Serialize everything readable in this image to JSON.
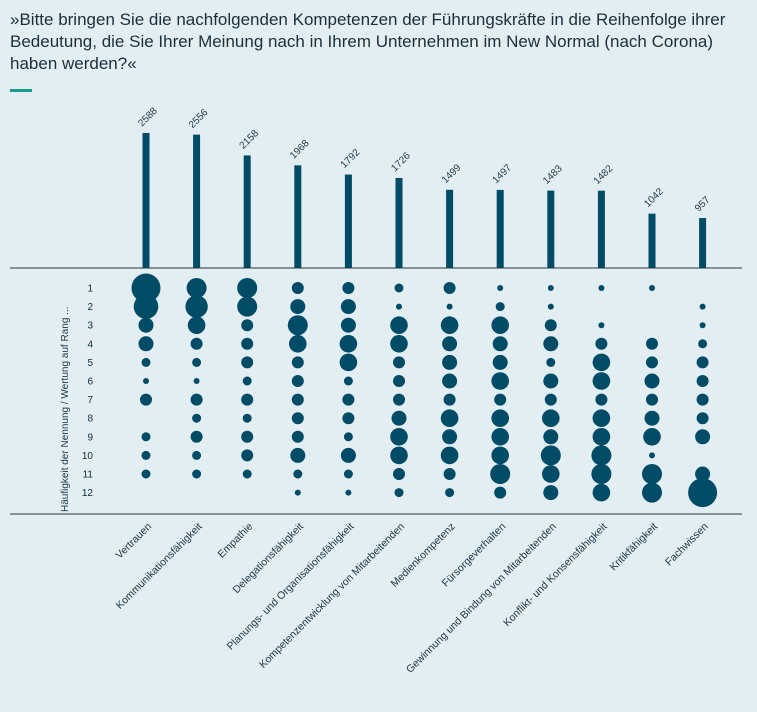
{
  "title": "»Bitte bringen Sie die nachfolgenden Kompetenzen der Führungskräfte in die Reihenfolge ihrer Bedeutung, die Sie Ihrer Meinung nach in Ihrem Unternehmen im New Normal (nach Corona) haben werden?«",
  "colors": {
    "accent": "#1a9b8e",
    "marks": "#004b66",
    "background": "#e3eef2"
  },
  "chart_data": {
    "type": "bar",
    "ylabel": "Häufigkeit der Nennung / Wertung auf Rang ...",
    "categories": [
      "Vertrauen",
      "Kommunikationsfähigkeit",
      "Empathie",
      "Delegationsfähigkeit",
      "Planungs- und Organisationsfähigkeit",
      "Kompetenzentwicklung von Mitarbeitenden",
      "Medienkompetenz",
      "Fürsorgeverhalten",
      "Gewinnung und Bindung von Mitarbeitenden",
      "Konflikt- und Konsensfähigkeit",
      "Kritikfähigkeit",
      "Fachwissen"
    ],
    "values": [
      2588,
      2556,
      2158,
      1968,
      1792,
      1726,
      1499,
      1497,
      1483,
      1482,
      1042,
      957
    ],
    "ylim": [
      0,
      2588
    ],
    "ranks": [
      "1",
      "2",
      "3",
      "4",
      "5",
      "6",
      "7",
      "8",
      "9",
      "10",
      "11",
      "12"
    ],
    "rank_size_levels": [
      [
        10,
        6,
        6,
        3,
        3,
        2,
        3,
        1,
        1,
        1,
        1,
        0
      ],
      [
        8,
        7,
        6,
        4,
        4,
        1,
        1,
        2,
        1,
        0,
        0,
        1
      ],
      [
        4,
        5,
        3,
        6,
        4,
        5,
        5,
        5,
        3,
        1,
        0,
        1
      ],
      [
        4,
        3,
        3,
        5,
        5,
        5,
        4,
        4,
        4,
        3,
        3,
        2
      ],
      [
        2,
        2,
        3,
        3,
        5,
        3,
        4,
        4,
        2,
        5,
        3,
        3
      ],
      [
        1,
        1,
        2,
        3,
        2,
        3,
        4,
        5,
        4,
        5,
        4,
        3
      ],
      [
        3,
        3,
        3,
        3,
        3,
        3,
        3,
        3,
        3,
        3,
        3,
        3
      ],
      [
        0,
        2,
        2,
        3,
        3,
        4,
        5,
        5,
        5,
        5,
        4,
        3
      ],
      [
        2,
        3,
        3,
        3,
        2,
        5,
        4,
        5,
        4,
        5,
        5,
        4
      ],
      [
        2,
        2,
        3,
        4,
        4,
        5,
        5,
        5,
        6,
        6,
        1,
        0
      ],
      [
        2,
        2,
        2,
        2,
        2,
        3,
        3,
        6,
        5,
        6,
        6,
        4
      ],
      [
        0,
        0,
        0,
        1,
        1,
        2,
        2,
        3,
        4,
        5,
        6,
        10
      ]
    ]
  }
}
